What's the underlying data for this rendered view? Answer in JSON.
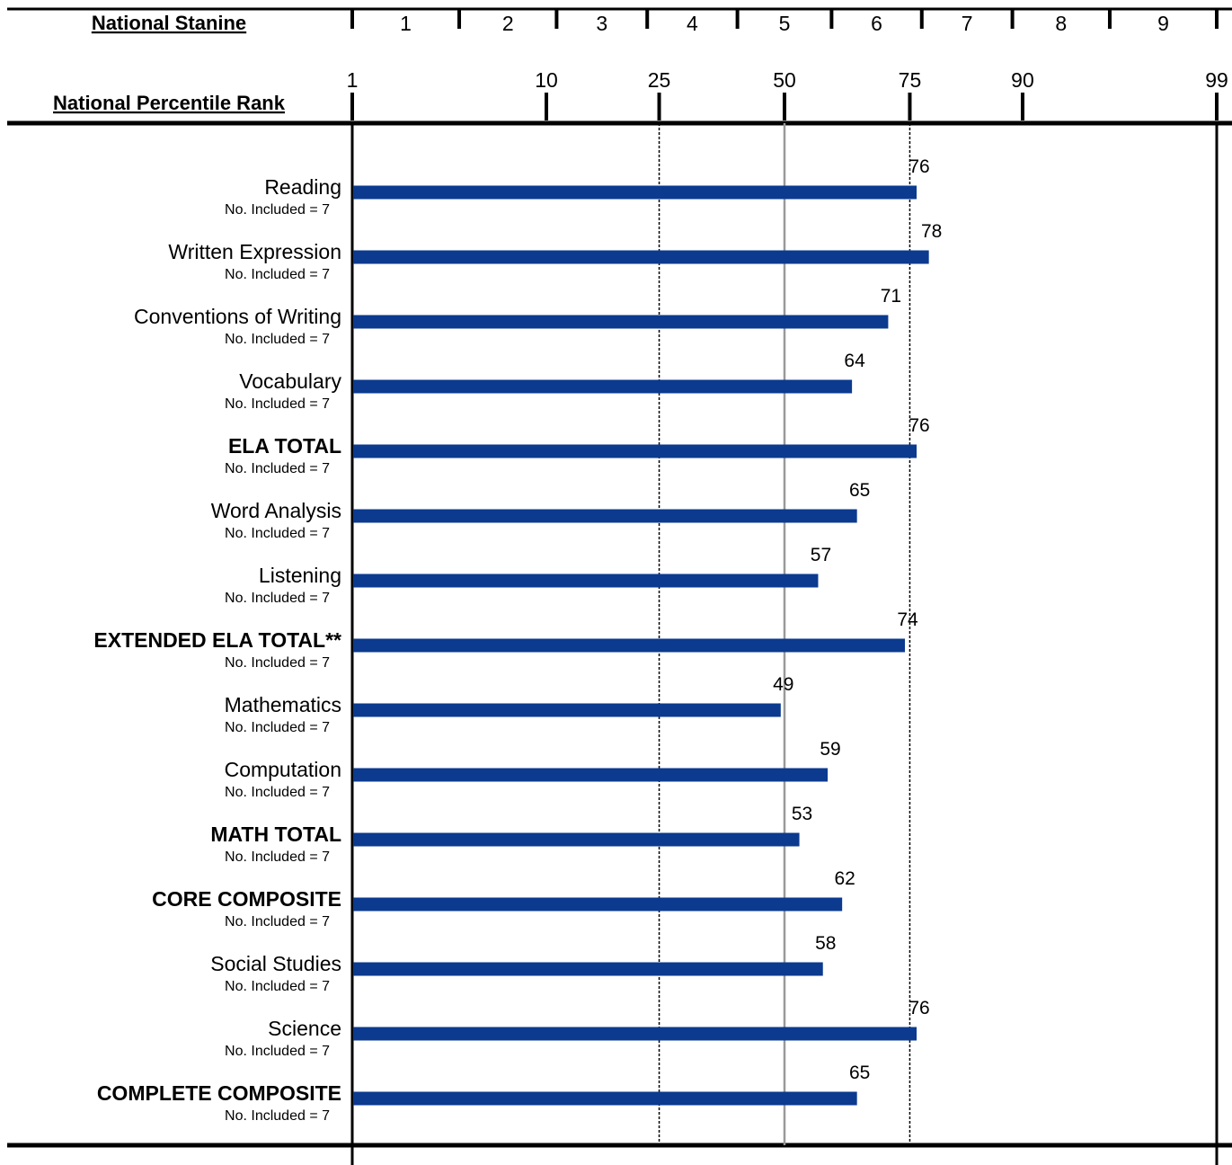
{
  "chart_data": {
    "type": "bar",
    "orientation": "horizontal",
    "stanine_label": "National Stanine",
    "stanines": [
      "1",
      "2",
      "3",
      "4",
      "5",
      "6",
      "7",
      "8",
      "9"
    ],
    "xlabel": "National Percentile Rank",
    "x_ticks": [
      1,
      10,
      25,
      50,
      75,
      90,
      99
    ],
    "x_tick_labels": [
      "1",
      "10",
      "25",
      "50",
      "75",
      "90",
      "99"
    ],
    "reference_lines": [
      25,
      50,
      75
    ],
    "bar_color": "#0b3a8f",
    "reference_line_color": "#999999",
    "categories": [
      {
        "label": "Reading",
        "bold": false,
        "sub": "No. Included = 7",
        "value": 76
      },
      {
        "label": "Written Expression",
        "bold": false,
        "sub": "No. Included = 7",
        "value": 78
      },
      {
        "label": "Conventions of Writing",
        "bold": false,
        "sub": "No. Included = 7",
        "value": 71
      },
      {
        "label": "Vocabulary",
        "bold": false,
        "sub": "No. Included = 7",
        "value": 64
      },
      {
        "label": "ELA TOTAL",
        "bold": true,
        "sub": "No. Included = 7",
        "value": 76
      },
      {
        "label": "Word Analysis",
        "bold": false,
        "sub": "No. Included = 7",
        "value": 65
      },
      {
        "label": "Listening",
        "bold": false,
        "sub": "No. Included = 7",
        "value": 57
      },
      {
        "label": "EXTENDED ELA TOTAL**",
        "bold": true,
        "sub": "No. Included = 7",
        "value": 74
      },
      {
        "label": "Mathematics",
        "bold": false,
        "sub": "No. Included = 7",
        "value": 49
      },
      {
        "label": "Computation",
        "bold": false,
        "sub": "No. Included = 7",
        "value": 59
      },
      {
        "label": "MATH TOTAL",
        "bold": true,
        "sub": "No. Included = 7",
        "value": 53
      },
      {
        "label": "CORE COMPOSITE",
        "bold": true,
        "sub": "No. Included = 7",
        "value": 62
      },
      {
        "label": "Social Studies",
        "bold": false,
        "sub": "No. Included = 7",
        "value": 58
      },
      {
        "label": "Science",
        "bold": false,
        "sub": "No. Included = 7",
        "value": 76
      },
      {
        "label": "COMPLETE COMPOSITE",
        "bold": true,
        "sub": "No. Included = 7",
        "value": 65
      }
    ]
  }
}
